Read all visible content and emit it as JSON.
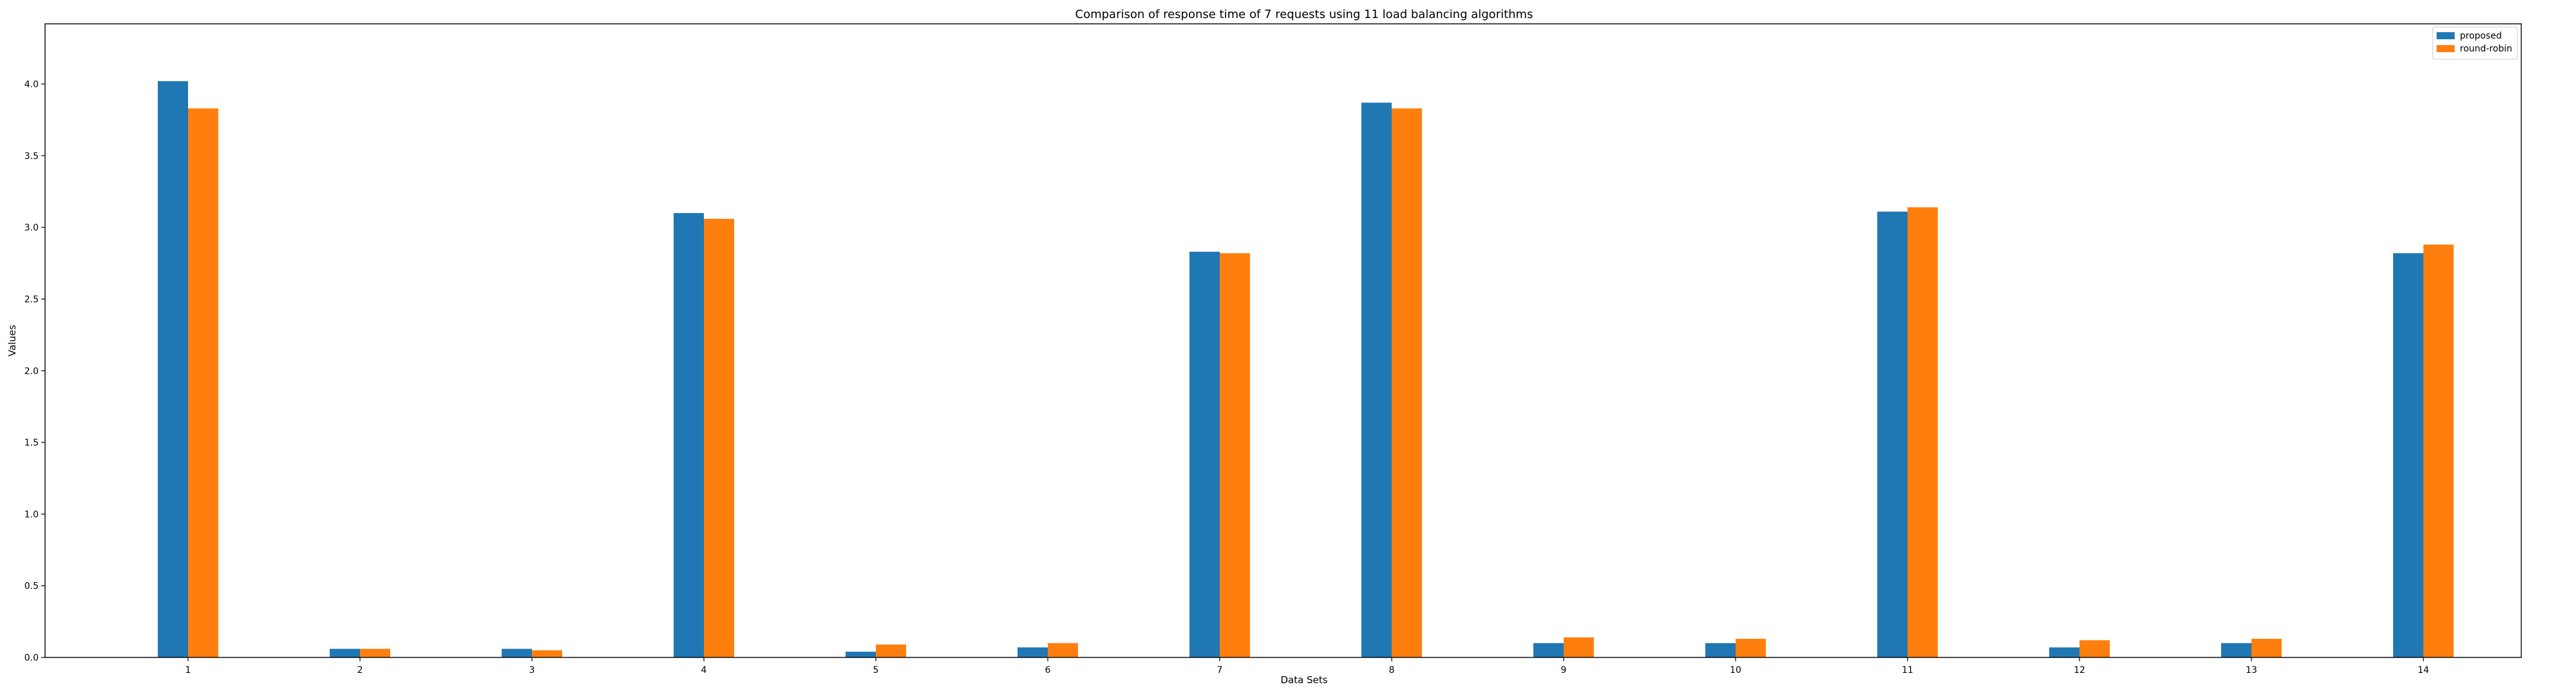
{
  "chart_data": {
    "type": "bar",
    "title": "Comparison of response time of 7 requests using 11 load balancing algorithms",
    "xlabel": "Data Sets",
    "ylabel": "Values",
    "categories": [
      "1",
      "2",
      "3",
      "4",
      "5",
      "6",
      "7",
      "8",
      "9",
      "10",
      "11",
      "12",
      "13",
      "14"
    ],
    "ylim": [
      0,
      4.42
    ],
    "yticks": [
      0.0,
      0.5,
      1.0,
      1.5,
      2.0,
      2.5,
      3.0,
      3.5,
      4.0
    ],
    "ytick_labels": [
      "0.0",
      "0.5",
      "1.0",
      "1.5",
      "2.0",
      "2.5",
      "3.0",
      "3.5",
      "4.0"
    ],
    "grid": false,
    "legend_position": "top-right",
    "series": [
      {
        "name": "proposed",
        "color": "#1f77b4",
        "values": [
          4.02,
          0.06,
          0.06,
          3.1,
          0.04,
          0.07,
          2.83,
          3.87,
          0.1,
          0.1,
          3.11,
          0.07,
          0.1,
          2.82
        ]
      },
      {
        "name": "round-robin",
        "color": "#ff7f0e",
        "values": [
          3.83,
          0.06,
          0.05,
          3.06,
          0.09,
          0.1,
          2.82,
          3.83,
          0.14,
          0.13,
          3.14,
          0.12,
          0.13,
          2.88
        ]
      }
    ]
  }
}
